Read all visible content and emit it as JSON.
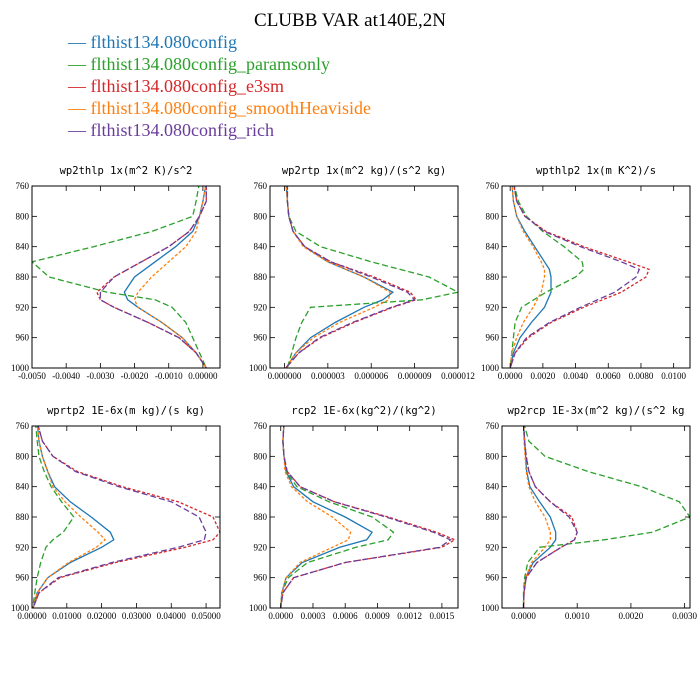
{
  "figure": {
    "title": "CLUBB VAR at140E,2N"
  },
  "chart_data": [
    {
      "type": "line",
      "title": "wp2thlp  1x(m^2 K)/s^2",
      "xlim": [
        -0.005,
        0.0005
      ],
      "ylim": [
        760,
        1000
      ],
      "y_reversed": true,
      "xticks": [
        -0.005,
        -0.004,
        -0.003,
        -0.002,
        -0.001,
        0.0
      ],
      "xtick_labels": [
        "-0.0050",
        "-0.0040",
        "-0.0030",
        "-0.0020",
        "-0.0010",
        "0.00000"
      ],
      "yticks": [
        760,
        800,
        840,
        880,
        920,
        960,
        1000
      ],
      "y": [
        755,
        780,
        800,
        820,
        840,
        860,
        880,
        900,
        910,
        920,
        940,
        960,
        980,
        1000
      ],
      "series": [
        {
          "name": "flthist134.080config",
          "values": [
            0.0001,
            0.0,
            -0.0001,
            -0.0003,
            -0.0008,
            -0.0014,
            -0.002,
            -0.0023,
            -0.0022,
            -0.0019,
            -0.0012,
            -0.0006,
            -0.0002,
            0.0001
          ]
        },
        {
          "name": "flthist134.080config_paramsonly",
          "values": [
            -0.0001,
            -0.0002,
            -0.0003,
            -0.0015,
            -0.0032,
            -0.005,
            -0.0045,
            -0.0028,
            -0.0014,
            -0.0009,
            -0.0005,
            -0.0003,
            -0.0001,
            0.0001
          ]
        },
        {
          "name": "flthist134.080config_e3sm",
          "values": [
            0.0001,
            0.0001,
            -0.0001,
            -0.0004,
            -0.001,
            -0.0018,
            -0.0026,
            -0.0031,
            -0.003,
            -0.0026,
            -0.0016,
            -0.0007,
            -0.0002,
            0.0001
          ]
        },
        {
          "name": "flthist134.080config_smoothHeaviside",
          "values": [
            0.0001,
            0.0,
            -0.0001,
            -0.0002,
            -0.0005,
            -0.001,
            -0.0015,
            -0.0019,
            -0.002,
            -0.0019,
            -0.0012,
            -0.0006,
            -0.0002,
            0.0001
          ]
        },
        {
          "name": "flthist134.080config_rich",
          "values": [
            0.0001,
            0.0001,
            -0.0001,
            -0.0004,
            -0.001,
            -0.0018,
            -0.0026,
            -0.003,
            -0.003,
            -0.0026,
            -0.0016,
            -0.0007,
            -0.0002,
            0.0001
          ]
        }
      ]
    },
    {
      "type": "line",
      "title": "wp2rtp  1x(m^2 kg)/(s^2 kg)",
      "xlim": [
        -1e-06,
        1.2e-05
      ],
      "ylim": [
        760,
        1000
      ],
      "y_reversed": true,
      "xticks": [
        0,
        3e-06,
        6e-06,
        9e-06,
        1.2e-05
      ],
      "xtick_labels": [
        "0.000000",
        "0.000003",
        "0.000006",
        "0.000009",
        "0.000012"
      ],
      "yticks": [
        760,
        800,
        840,
        880,
        920,
        960,
        1000
      ],
      "y": [
        755,
        780,
        800,
        820,
        840,
        860,
        880,
        900,
        910,
        920,
        940,
        960,
        980,
        1000
      ],
      "series": [
        {
          "name": "flthist134.080config",
          "values": [
            1e-07,
            2e-07,
            3e-07,
            6e-07,
            1.4e-06,
            3e-06,
            5.5e-06,
            7.5e-06,
            6.8e-06,
            5.5e-06,
            3.5e-06,
            1.8e-06,
            8e-07,
            1e-07
          ]
        },
        {
          "name": "flthist134.080config_paramsonly",
          "values": [
            2e-07,
            2e-07,
            3e-07,
            8e-07,
            2.5e-06,
            6e-06,
            1e-05,
            1.2e-05,
            9.5e-06,
            1.8e-06,
            1.2e-06,
            8e-07,
            5e-07,
            2e-07
          ]
        },
        {
          "name": "flthist134.080config_e3sm",
          "values": [
            2e-07,
            2e-07,
            3e-07,
            6e-07,
            1.4e-06,
            3.2e-06,
            6.2e-06,
            8.7e-06,
            9.1e-06,
            7.5e-06,
            4.8e-06,
            2.5e-06,
            1e-06,
            1e-07
          ]
        },
        {
          "name": "flthist134.080config_smoothHeaviside",
          "values": [
            1e-07,
            2e-07,
            3e-07,
            6e-07,
            1.3e-06,
            3e-06,
            5.5e-06,
            7.3e-06,
            7.2e-06,
            6.2e-06,
            3.8e-06,
            2e-06,
            8e-07,
            1e-07
          ]
        },
        {
          "name": "flthist134.080config_rich",
          "values": [
            2e-07,
            2e-07,
            3e-07,
            6e-07,
            1.4e-06,
            3.2e-06,
            6e-06,
            8.5e-06,
            9e-06,
            7.4e-06,
            4.7e-06,
            2.4e-06,
            1e-06,
            1e-07
          ]
        }
      ]
    },
    {
      "type": "line",
      "title": "wpthlp2  1x(m K^2)/s",
      "xlim": [
        -0.0005,
        0.011
      ],
      "ylim": [
        760,
        1000
      ],
      "y_reversed": true,
      "xticks": [
        0,
        0.002,
        0.004,
        0.006,
        0.008,
        0.01
      ],
      "xtick_labels": [
        "0.0000",
        "0.0020",
        "0.0040",
        "0.0060",
        "0.0080",
        "0.0100"
      ],
      "yticks": [
        760,
        800,
        840,
        880,
        920,
        960,
        1000
      ],
      "y": [
        755,
        780,
        800,
        820,
        840,
        860,
        870,
        880,
        900,
        920,
        940,
        960,
        980,
        1000
      ],
      "series": [
        {
          "name": "flthist134.080config",
          "values": [
            0.0001,
            0.0002,
            0.0004,
            0.0009,
            0.0015,
            0.0021,
            0.0024,
            0.0025,
            0.0025,
            0.0021,
            0.0013,
            0.0006,
            0.0002,
            0.0
          ]
        },
        {
          "name": "flthist134.080config_paramsonly",
          "values": [
            0.0002,
            0.0005,
            0.001,
            0.002,
            0.0033,
            0.0044,
            0.0045,
            0.004,
            0.0022,
            0.0007,
            0.0003,
            0.0002,
            0.0001,
            0.0
          ]
        },
        {
          "name": "flthist134.080config_e3sm",
          "values": [
            0.0002,
            0.0004,
            0.0009,
            0.0022,
            0.0045,
            0.0072,
            0.0085,
            0.0083,
            0.0068,
            0.0045,
            0.0025,
            0.0011,
            0.0003,
            0.0
          ]
        },
        {
          "name": "flthist134.080config_smoothHeaviside",
          "values": [
            0.0001,
            0.0002,
            0.0004,
            0.0008,
            0.0014,
            0.0019,
            0.0021,
            0.0021,
            0.0019,
            0.0014,
            0.0008,
            0.0004,
            0.0001,
            0.0
          ]
        },
        {
          "name": "flthist134.080config_rich",
          "values": [
            0.0002,
            0.0004,
            0.0009,
            0.0021,
            0.0043,
            0.0068,
            0.0079,
            0.0077,
            0.0064,
            0.0043,
            0.0024,
            0.001,
            0.0003,
            0.0
          ]
        }
      ]
    },
    {
      "type": "line",
      "title": "wprtp2  1E-6x(m kg)/(s kg)",
      "xlim": [
        0,
        0.054
      ],
      "ylim": [
        760,
        1000
      ],
      "y_reversed": true,
      "xticks": [
        0,
        0.01,
        0.02,
        0.03,
        0.04,
        0.05
      ],
      "xtick_labels": [
        "0.00000",
        "0.01000",
        "0.02000",
        "0.03000",
        "0.04000",
        "0.05000"
      ],
      "yticks": [
        760,
        800,
        840,
        880,
        920,
        960,
        1000
      ],
      "y": [
        755,
        780,
        800,
        820,
        840,
        860,
        880,
        900,
        910,
        920,
        940,
        960,
        980,
        1000
      ],
      "series": [
        {
          "name": "flthist134.080config",
          "values": [
            0.0015,
            0.002,
            0.003,
            0.0045,
            0.0065,
            0.011,
            0.017,
            0.0225,
            0.0235,
            0.02,
            0.011,
            0.0045,
            0.0015,
            0.0003
          ]
        },
        {
          "name": "flthist134.080config_paramsonly",
          "values": [
            0.001,
            0.0015,
            0.002,
            0.0035,
            0.0055,
            0.0085,
            0.012,
            0.009,
            0.006,
            0.004,
            0.0025,
            0.0015,
            0.0008,
            0.0002
          ]
        },
        {
          "name": "flthist134.080config_e3sm",
          "values": [
            0.0015,
            0.003,
            0.006,
            0.013,
            0.026,
            0.042,
            0.052,
            0.054,
            0.052,
            0.044,
            0.024,
            0.008,
            0.002,
            0.0003
          ]
        },
        {
          "name": "flthist134.080config_smoothHeaviside",
          "values": [
            0.0015,
            0.002,
            0.003,
            0.0045,
            0.006,
            0.0095,
            0.014,
            0.019,
            0.021,
            0.0185,
            0.0105,
            0.0045,
            0.0015,
            0.0003
          ]
        },
        {
          "name": "flthist134.080config_rich",
          "values": [
            0.0015,
            0.003,
            0.006,
            0.0125,
            0.025,
            0.04,
            0.048,
            0.05,
            0.0495,
            0.042,
            0.023,
            0.0075,
            0.002,
            0.0003
          ]
        }
      ]
    },
    {
      "type": "line",
      "title": "rcp2  1E-6x(kg^2)/(kg^2)",
      "xlim": [
        -0.0001,
        0.00165
      ],
      "ylim": [
        760,
        1000
      ],
      "y_reversed": true,
      "xticks": [
        0,
        0.0003,
        0.0006,
        0.0009,
        0.0012,
        0.0015
      ],
      "xtick_labels": [
        "0.0000",
        "0.0003",
        "0.0006",
        "0.0009",
        "0.0012",
        "0.0015"
      ],
      "yticks": [
        760,
        800,
        840,
        880,
        920,
        960,
        1000
      ],
      "y": [
        755,
        780,
        800,
        820,
        840,
        860,
        880,
        900,
        910,
        920,
        940,
        960,
        980,
        1000
      ],
      "series": [
        {
          "name": "flthist134.080config",
          "values": [
            3e-05,
            2e-05,
            3e-05,
            5e-05,
            0.00012,
            0.0003,
            0.0006,
            0.00085,
            0.0008,
            0.00055,
            0.0002,
            5e-05,
            1e-05,
            0.0
          ]
        },
        {
          "name": "flthist134.080config_paramsonly",
          "values": [
            3e-05,
            2e-05,
            3e-05,
            5e-05,
            0.00015,
            0.00045,
            0.00085,
            0.00105,
            0.001,
            0.0007,
            0.00025,
            7e-05,
            1e-05,
            0.0
          ]
        },
        {
          "name": "flthist134.080config_e3sm",
          "values": [
            3e-05,
            2e-05,
            3e-05,
            6e-05,
            0.00018,
            0.0005,
            0.001,
            0.00145,
            0.00162,
            0.0015,
            0.0006,
            0.00012,
            2e-05,
            0.0
          ]
        },
        {
          "name": "flthist134.080config_smoothHeaviside",
          "values": [
            3e-05,
            2e-05,
            3e-05,
            4e-05,
            0.0001,
            0.00025,
            0.00048,
            0.00065,
            0.00063,
            0.00048,
            0.00018,
            5e-05,
            1e-05,
            0.0
          ]
        },
        {
          "name": "flthist134.080config_rich",
          "values": [
            3e-05,
            2e-05,
            3e-05,
            6e-05,
            0.00018,
            0.0005,
            0.00098,
            0.00142,
            0.00158,
            0.00148,
            0.0006,
            0.00012,
            2e-05,
            0.0
          ]
        }
      ]
    },
    {
      "type": "line",
      "title": "wp2rcp  1E-3x(m^2 kg)/(s^2 kg",
      "xlim": [
        -0.0004,
        0.0031
      ],
      "ylim": [
        760,
        1000
      ],
      "y_reversed": true,
      "xticks": [
        0,
        0.001,
        0.002,
        0.003
      ],
      "xtick_labels": [
        "0.0000",
        "0.0010",
        "0.0020",
        "0.0030"
      ],
      "yticks": [
        760,
        800,
        840,
        880,
        920,
        960,
        1000
      ],
      "y": [
        755,
        780,
        800,
        820,
        840,
        860,
        880,
        900,
        910,
        920,
        940,
        960,
        980,
        1000
      ],
      "series": [
        {
          "name": "flthist134.080config",
          "values": [
            0.0,
            2e-05,
            4e-05,
            6e-05,
            0.00012,
            0.0003,
            0.0005,
            0.0006,
            0.0006,
            0.0005,
            0.00018,
            4e-05,
            1e-05,
            0.0
          ]
        },
        {
          "name": "flthist134.080config_paramsonly",
          "values": [
            0.0,
            0.0001,
            0.0004,
            0.0012,
            0.0022,
            0.0029,
            0.0031,
            0.0024,
            0.0015,
            0.0003,
            8e-05,
            2e-05,
            0.0,
            0.0
          ]
        },
        {
          "name": "flthist134.080config_e3sm",
          "values": [
            0.0,
            2e-05,
            5e-05,
            0.0001,
            0.00022,
            0.0005,
            0.0009,
            0.001,
            0.00095,
            0.0007,
            0.00025,
            5e-05,
            1e-05,
            0.0
          ]
        },
        {
          "name": "flthist134.080config_smoothHeaviside",
          "values": [
            0.0,
            1e-05,
            3e-05,
            5e-05,
            0.0001,
            0.00022,
            0.0004,
            0.0005,
            0.0005,
            0.0004,
            0.00015,
            4e-05,
            1e-05,
            0.0
          ]
        },
        {
          "name": "flthist134.080config_rich",
          "values": [
            0.0,
            2e-05,
            5e-05,
            0.0001,
            0.00022,
            0.0005,
            0.00085,
            0.001,
            0.00095,
            0.0007,
            0.00025,
            5e-05,
            1e-05,
            0.0
          ]
        }
      ]
    }
  ],
  "series_styles": [
    {
      "color": "#1f77b4",
      "dash": ""
    },
    {
      "color": "#2ca02c",
      "dash": "6,3"
    },
    {
      "color": "#d62728",
      "dash": "3,2"
    },
    {
      "color": "#ff7f0e",
      "dash": "3,2"
    },
    {
      "color": "#6a3d9a",
      "dash": "6,3"
    }
  ],
  "legend": [
    {
      "marker": "—",
      "label": "flthist134.080config"
    },
    {
      "marker": "—",
      "label": "flthist134.080config_paramsonly"
    },
    {
      "marker": "—",
      "label": "flthist134.080config_e3sm"
    },
    {
      "marker": "—",
      "label": "flthist134.080config_smoothHeaviside"
    },
    {
      "marker": "—",
      "label": "flthist134.080config_rich"
    }
  ]
}
